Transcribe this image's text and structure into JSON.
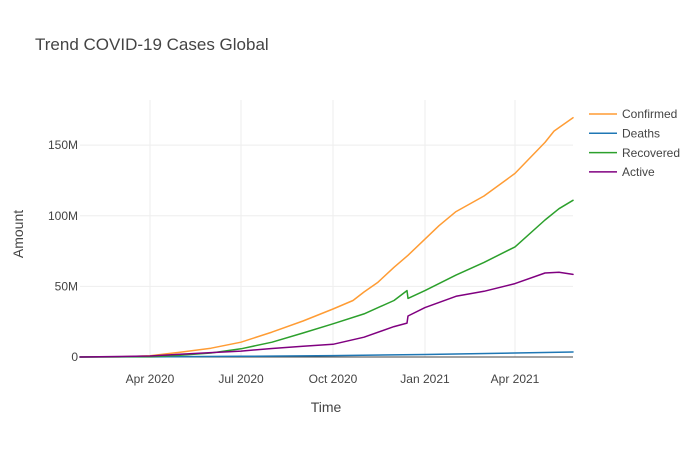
{
  "chart_data": {
    "type": "line",
    "title": "Trend COVID-19 Cases Global",
    "xlabel": "Time",
    "ylabel": "Amount",
    "x_range": [
      "2020-01-22",
      "2021-05-29"
    ],
    "ylim": [
      0,
      182000000
    ],
    "y_ticks": [
      0,
      50000000,
      100000000,
      150000000
    ],
    "y_tick_labels": [
      "0",
      "50M",
      "100M",
      "150M"
    ],
    "x_ticks": [
      "2020-04-01",
      "2020-07-01",
      "2020-10-01",
      "2021-01-01",
      "2021-04-01"
    ],
    "x_tick_labels": [
      "Apr 2020",
      "Jul 2020",
      "Oct 2020",
      "Jan 2021",
      "Apr 2021"
    ],
    "grid": true,
    "legend_position": "top-right",
    "series": [
      {
        "name": "Confirmed",
        "color": "#ff9c34",
        "points": [
          [
            "2020-01-22",
            0
          ],
          [
            "2020-03-01",
            100000
          ],
          [
            "2020-04-01",
            900000
          ],
          [
            "2020-05-01",
            3300000
          ],
          [
            "2020-06-01",
            6200000
          ],
          [
            "2020-07-01",
            10500000
          ],
          [
            "2020-08-01",
            17600000
          ],
          [
            "2020-09-01",
            25500000
          ],
          [
            "2020-10-01",
            34000000
          ],
          [
            "2020-10-21",
            40000000
          ],
          [
            "2020-11-01",
            46000000
          ],
          [
            "2020-11-15",
            53000000
          ],
          [
            "2020-12-01",
            63500000
          ],
          [
            "2020-12-15",
            72000000
          ],
          [
            "2021-01-01",
            83500000
          ],
          [
            "2021-01-15",
            93000000
          ],
          [
            "2021-02-01",
            103000000
          ],
          [
            "2021-03-01",
            114000000
          ],
          [
            "2021-04-01",
            130000000
          ],
          [
            "2021-05-01",
            152000000
          ],
          [
            "2021-05-10",
            160000000
          ],
          [
            "2021-05-29",
            169500000
          ]
        ]
      },
      {
        "name": "Deaths",
        "color": "#1f77b4",
        "points": [
          [
            "2020-01-22",
            0
          ],
          [
            "2020-04-01",
            50000
          ],
          [
            "2020-07-01",
            500000
          ],
          [
            "2020-10-01",
            1000000
          ],
          [
            "2021-01-01",
            1800000
          ],
          [
            "2021-04-01",
            2800000
          ],
          [
            "2021-05-29",
            3550000
          ]
        ]
      },
      {
        "name": "Recovered",
        "color": "#2ca02c",
        "points": [
          [
            "2020-01-22",
            0
          ],
          [
            "2020-04-01",
            200000
          ],
          [
            "2020-05-01",
            1200000
          ],
          [
            "2020-06-01",
            2800000
          ],
          [
            "2020-07-01",
            5800000
          ],
          [
            "2020-08-01",
            10500000
          ],
          [
            "2020-09-01",
            17000000
          ],
          [
            "2020-10-01",
            23500000
          ],
          [
            "2020-11-01",
            30500000
          ],
          [
            "2020-12-01",
            40000000
          ],
          [
            "2020-12-14",
            47000000
          ],
          [
            "2020-12-15",
            41500000
          ],
          [
            "2021-01-01",
            47000000
          ],
          [
            "2021-02-01",
            58000000
          ],
          [
            "2021-03-01",
            67000000
          ],
          [
            "2021-04-01",
            78000000
          ],
          [
            "2021-05-01",
            97000000
          ],
          [
            "2021-05-15",
            105000000
          ],
          [
            "2021-05-29",
            111000000
          ]
        ]
      },
      {
        "name": "Active",
        "color": "#800080",
        "points": [
          [
            "2020-01-22",
            0
          ],
          [
            "2020-04-01",
            700000
          ],
          [
            "2020-05-01",
            1900000
          ],
          [
            "2020-06-01",
            3100000
          ],
          [
            "2020-07-01",
            4200000
          ],
          [
            "2020-08-01",
            6000000
          ],
          [
            "2020-09-01",
            7600000
          ],
          [
            "2020-10-01",
            9000000
          ],
          [
            "2020-11-01",
            14000000
          ],
          [
            "2020-12-01",
            21500000
          ],
          [
            "2020-12-14",
            24000000
          ],
          [
            "2020-12-15",
            29000000
          ],
          [
            "2021-01-01",
            35000000
          ],
          [
            "2021-02-01",
            43000000
          ],
          [
            "2021-03-01",
            46500000
          ],
          [
            "2021-04-01",
            52000000
          ],
          [
            "2021-05-01",
            59500000
          ],
          [
            "2021-05-15",
            60000000
          ],
          [
            "2021-05-29",
            58500000
          ]
        ]
      }
    ]
  }
}
